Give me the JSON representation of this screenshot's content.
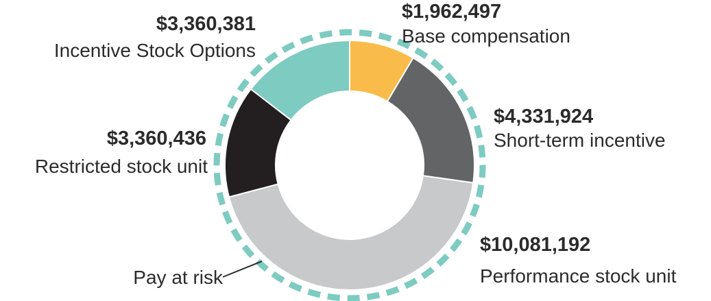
{
  "chart_data": {
    "type": "pie",
    "variant": "donut",
    "title": "",
    "categories": [
      "Base compensation",
      "Short-term incentive",
      "Performance stock unit",
      "Restricted stock unit",
      "Incentive Stock Options"
    ],
    "values": [
      1962497,
      4331924,
      10081192,
      3360436,
      3360381
    ],
    "value_labels": [
      "$1,962,497",
      "$4,331,924",
      "$10,081,192",
      "$3,360,436",
      "$3,360,381"
    ],
    "colors": [
      "#F9BC4A",
      "#636466",
      "#C8C9CB",
      "#231F20",
      "#7DCBC1"
    ],
    "annotation": {
      "text": "Pay at risk",
      "style": "dashed-ring",
      "color": "#7DCBC1"
    }
  }
}
